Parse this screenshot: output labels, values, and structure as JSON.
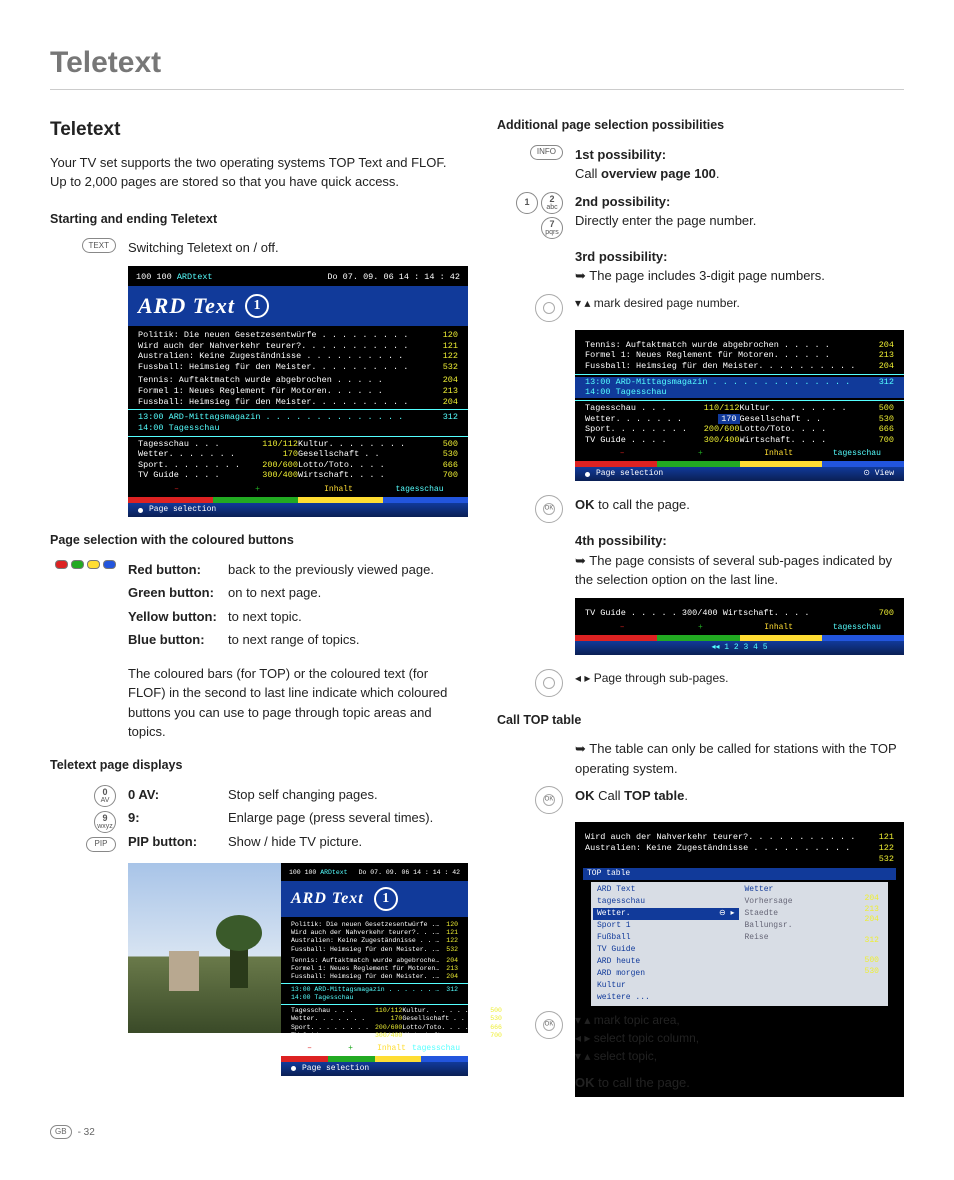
{
  "page": {
    "title": "Teletext",
    "footer_region": "GB",
    "footer_page": "- 32"
  },
  "left": {
    "h2": "Teletext",
    "intro": "Your TV set supports the two operating systems TOP Text and FLOF. Up to 2,000 pages are stored so that you have quick access.",
    "start_head": "Starting and ending Teletext",
    "text_btn": "TEXT",
    "text_desc": "Switching Teletext on / off.",
    "colorbtn_head": "Page selection with the coloured buttons",
    "buttons": {
      "red_k": "Red button:",
      "red_v": "back to the previously viewed page.",
      "green_k": "Green button:",
      "green_v": "on to next page.",
      "yellow_k": "Yellow button:",
      "yellow_v": "to next topic.",
      "blue_k": "Blue button:",
      "blue_v": "to next range of topics."
    },
    "color_para": "The coloured bars (for TOP) or the coloured text (for FLOF) in the second to last line indicate which coloured buttons you can use to page through topic areas and topics.",
    "display_head": "Teletext page displays",
    "btn0_top": "0",
    "btn0_bot": "AV",
    "btn9_top": "9",
    "btn9_bot": "wxyz",
    "btn_pip": "PIP",
    "disp": {
      "k0": "0 AV:",
      "v0": "Stop self changing pages.",
      "k9": "9:",
      "v9": "Enlarge page (press several times).",
      "kpip": "PIP button:",
      "vpip": "Show / hide TV picture."
    }
  },
  "right": {
    "head": "Additional page selection possibilities",
    "p1_head": "1st possibility:",
    "p1_btn": "INFO",
    "p1_text_a": "Call ",
    "p1_text_b": "overview page 100",
    "p1_text_c": ".",
    "p2_head": "2nd possibility:",
    "p2_btn1_num": "1",
    "p2_btn2_num": "2",
    "p2_btn2_sub": "abc",
    "p2_btn3_num": "7",
    "p2_btn3_sub": "pqrs",
    "p2_text": "Directly enter the page number.",
    "p3_head": "3rd possibility:",
    "p3_bullet": "➥ The page includes 3-digit page numbers.",
    "p3_mark": "▾ ▴ mark desired page number.",
    "p3_ok_a": "OK",
    "p3_ok_b": " to call the page.",
    "p4_head": "4th possibility:",
    "p4_bullet": "➥ The page consists of several sub-pages indicated by the selection option on the last line.",
    "p4_page": "◂ ▸ Page through sub-pages.",
    "ct_head": "Call TOP table",
    "ct_bullet": "➥ The table can only be called for stations with the TOP operating system.",
    "ct_ok_a": "OK",
    "ct_ok_b": "  Call ",
    "ct_ok_c": "TOP table",
    "ct_ok_d": ".",
    "ct_nav1": "▾ ▴ mark topic area,",
    "ct_nav2": "◂ ▸ select topic column,",
    "ct_nav3": "▾ ▴ select topic,",
    "ct_call_a": "OK",
    "ct_call_b": "  to call the page."
  },
  "ttx1": {
    "hdr_l": "100  100",
    "hdr_c": "ARDtext",
    "hdr_r": "Do  07. 09. 06       14 : 14 : 42",
    "title": "ARD Text",
    "lines": [
      {
        "t": "Politik: Die neuen Gesetzesentwürfe . . . . . . . . .",
        "p": "120",
        "c": ""
      },
      {
        "t": "Wird auch der Nahverkehr teurer?. . . . . . . . . . .",
        "p": "121",
        "c": ""
      },
      {
        "t": "Australien: Keine Zugeständnisse  . . . . . . . . . .",
        "p": "122",
        "c": ""
      },
      {
        "t": "Fussball: Heimsieg für den Meister. . . . . . . . . .",
        "p": "532",
        "c": ""
      },
      {
        "t": "Tennis: Auftaktmatch wurde abgebrochen  . . . . .",
        "p": "204",
        "c": ""
      },
      {
        "t": "Formel 1: Neues Reglement für Motoren. . . . . .",
        "p": "213",
        "c": ""
      },
      {
        "t": "Fussball: Heimsieg für den Meister. . . . . . . . . .",
        "p": "204",
        "c": ""
      }
    ],
    "sched": [
      {
        "t": "13:00   ARD-Mittagsmagazin . . . . . . . . . . . . . .",
        "p": "312"
      },
      {
        "t": "14:00   Tagesschau",
        "p": ""
      }
    ],
    "grid_l": [
      {
        "t": "Tagesschau . . .",
        "p": "110/112"
      },
      {
        "t": "Wetter. . . . . . .",
        "p": "170"
      },
      {
        "t": "Sport. . . . . . . .",
        "p": "200/600"
      },
      {
        "t": "TV Guide  . . . .",
        "p": "300/400"
      }
    ],
    "grid_r": [
      {
        "t": "Kultur. . . . . . . .",
        "p": "500"
      },
      {
        "t": "Gesellschaft  . .",
        "p": "530"
      },
      {
        "t": "Lotto/Toto. . . .",
        "p": "666"
      },
      {
        "t": "Wirtschaft. . . .",
        "p": "700"
      }
    ],
    "bar_minus": "–",
    "bar_plus": "+",
    "bar_y": "Inhalt",
    "bar_c": "tagesschau",
    "footer": "Page selection"
  },
  "ttx3": {
    "lines_top": [
      {
        "t": "Tennis: Auftaktmatch wurde abgebrochen  . . . . .",
        "p": "204"
      },
      {
        "t": "Formel 1: Neues Reglement für Motoren. . . . . .",
        "p": "213"
      },
      {
        "t": "Fussball: Heimsieg für den Meister. . . . . . . . . .",
        "p": "204"
      }
    ],
    "sched": [
      {
        "t": "13:00   ARD-Mittagsmagazin . . . . . . . . . . . . . .",
        "p": "312"
      },
      {
        "t": "14:00   Tagesschau",
        "p": ""
      }
    ],
    "hl_item_t": "Wetter. . . . . . .",
    "hl_item_p": "170",
    "footer_l": "Page selection",
    "footer_r": "View"
  },
  "ttx4": {
    "line": {
      "t": "TV Guide  . . . . .   300/400    Wirtschaft. . . .",
      "p": "700"
    },
    "sub": "◂◂ 1 2 3 4 5"
  },
  "top_table": {
    "lines_top": [
      {
        "t": "Wird auch der Nahverkehr teurer?. . . . . . . . . . .",
        "p": "121"
      },
      {
        "t": "Australien: Keine Zugeständnisse  . . . . . . . . . .",
        "p": "122"
      },
      {
        "t": "",
        "p": "532"
      }
    ],
    "header": "TOP table",
    "left_items": [
      "ARD Text",
      "tagesschau",
      "Wetter.",
      "Sport 1",
      "Fußball",
      "TV Guide",
      "ARD heute",
      "ARD morgen",
      "Kultur",
      "weitere ..."
    ],
    "right_items": [
      "Wetter",
      "Vorhersage",
      "Staedte",
      "Ballungsr.",
      "Reise"
    ],
    "side_pages": [
      "204",
      "213",
      "204",
      "",
      "312",
      "",
      "500",
      "530"
    ]
  }
}
